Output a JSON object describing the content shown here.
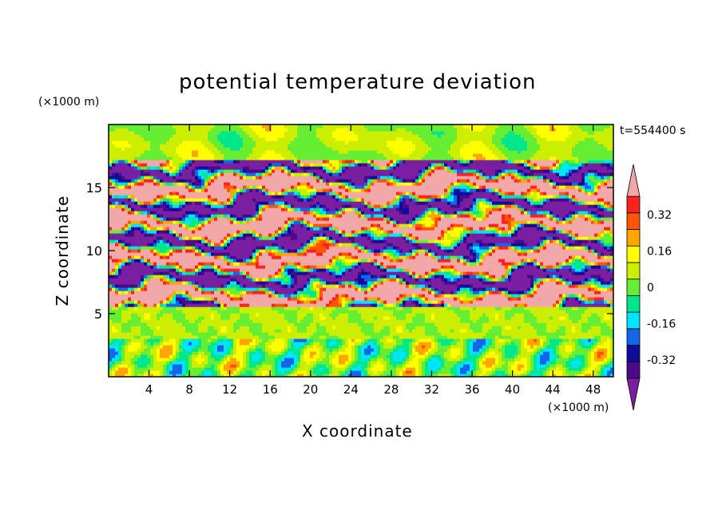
{
  "chart_data": {
    "type": "heatmap",
    "title": "potential temperature deviation",
    "xlabel": "X coordinate",
    "ylabel": "Z coordinate",
    "x_unit": "(×1000 m)",
    "y_unit": "(×1000 m)",
    "time_label": "t=554400 s",
    "xlim": [
      0,
      50
    ],
    "ylim": [
      0,
      20
    ],
    "x_ticks": [
      4,
      8,
      12,
      16,
      20,
      24,
      28,
      32,
      36,
      40,
      44,
      48
    ],
    "y_ticks": [
      5,
      10,
      15
    ],
    "colorbar": {
      "levels": [
        -0.48,
        -0.4,
        -0.32,
        -0.24,
        -0.16,
        -0.08,
        0,
        0.08,
        0.16,
        0.24,
        0.32,
        0.4,
        0.48
      ],
      "tick_labels": [
        "0.32",
        "0.16",
        "0",
        "-0.16",
        "-0.32"
      ],
      "tick_values": [
        0.32,
        0.16,
        0,
        -0.16,
        -0.32
      ],
      "colors": [
        "#7b1fa2",
        "#4a0a8a",
        "#0d0d9a",
        "#1565e8",
        "#00e5ff",
        "#00e68a",
        "#66ee33",
        "#ccee00",
        "#ffff00",
        "#ffa500",
        "#ff5500",
        "#ff2020",
        "#f2a8a8"
      ]
    },
    "layers": [
      {
        "z_range": [
          17,
          20
        ],
        "dominant": "light green / yellow-green (about 0 to 0.08)"
      },
      {
        "z_range": [
          5.5,
          17
        ],
        "dominant": "alternating purple (below -0.40) and pink (above 0.40) bands"
      },
      {
        "z_range": [
          3,
          5.5
        ],
        "dominant": "light green (about 0)"
      },
      {
        "z_range": [
          0,
          3
        ],
        "dominant": "mixed cyan, green, yellow, orange cells"
      }
    ]
  }
}
